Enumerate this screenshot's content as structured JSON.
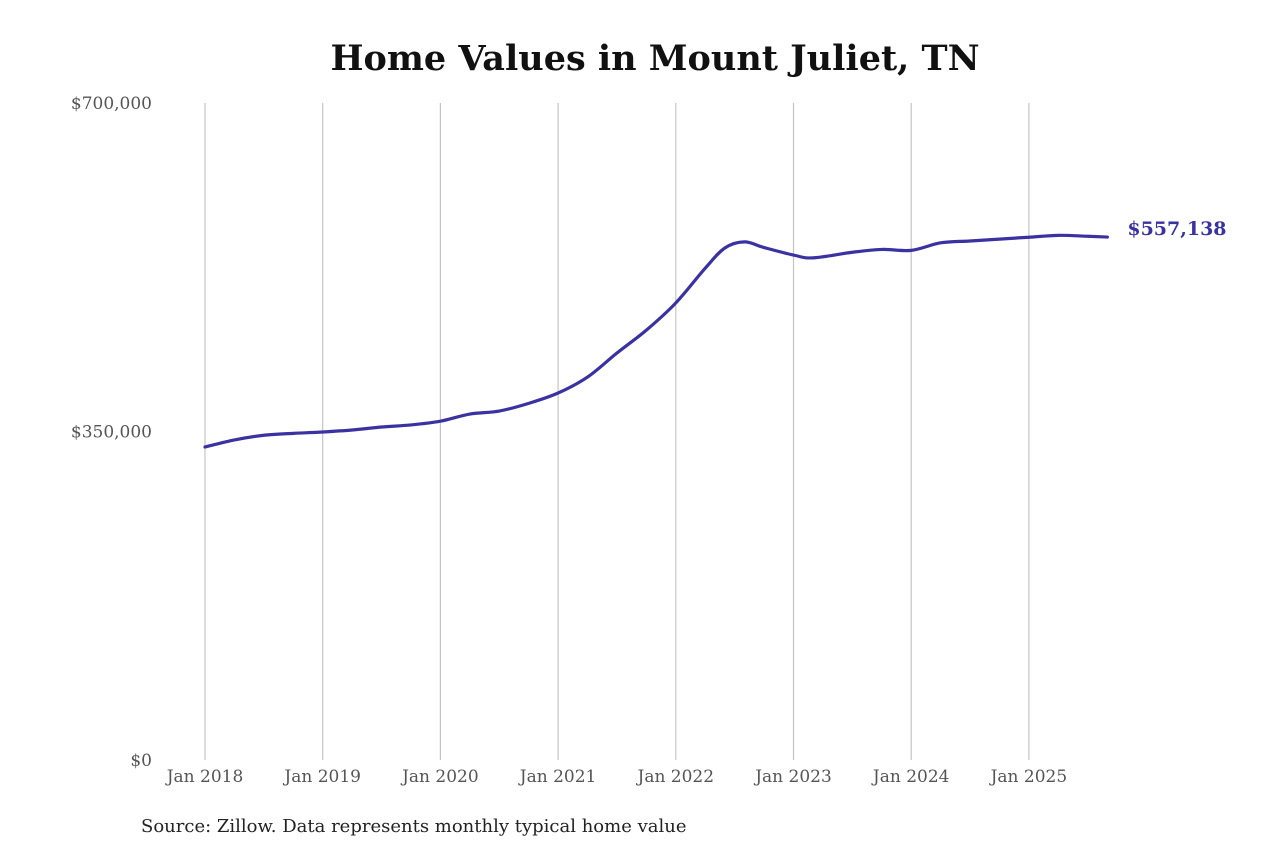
{
  "chart_data": {
    "type": "line",
    "title": "Home Values in Mount Juliet, TN",
    "source": "Source: Zillow. Data represents monthly typical home value",
    "xlabel": "",
    "ylabel": "",
    "ylim": [
      0,
      700000
    ],
    "y_ticks": [
      0,
      350000,
      700000
    ],
    "y_tick_labels": [
      "$0",
      "$350,000",
      "$700,000"
    ],
    "x_ticks": [
      "2018-01",
      "2019-01",
      "2020-01",
      "2021-01",
      "2022-01",
      "2023-01",
      "2024-01",
      "2025-01"
    ],
    "x_tick_labels": [
      "Jan 2018",
      "Jan 2019",
      "Jan 2020",
      "Jan 2021",
      "Jan 2022",
      "Jan 2023",
      "Jan 2024",
      "Jan 2025"
    ],
    "grid": "vertical",
    "line_color": "#3a32a0",
    "end_label": "$557,138",
    "series": [
      {
        "x": [
          "2018-01",
          "2018-04",
          "2018-07",
          "2018-10",
          "2019-01",
          "2019-04",
          "2019-07",
          "2019-10",
          "2020-01",
          "2020-04",
          "2020-07",
          "2020-10",
          "2021-01",
          "2021-04",
          "2021-07",
          "2021-10",
          "2022-01",
          "2022-04",
          "2022-06",
          "2022-08",
          "2022-10",
          "2023-01",
          "2023-03",
          "2023-07",
          "2023-10",
          "2024-01",
          "2024-04",
          "2024-07",
          "2024-10",
          "2025-01",
          "2025-04",
          "2025-07",
          "2025-09"
        ],
        "values": [
          333500,
          341000,
          346000,
          348000,
          349500,
          351600,
          354800,
          357000,
          361000,
          368600,
          371800,
          380000,
          391000,
          408000,
          433600,
          458000,
          487000,
          524000,
          545500,
          552000,
          546000,
          538000,
          535000,
          541000,
          544000,
          543000,
          551000,
          553000,
          555000,
          557000,
          559000,
          558000,
          557138
        ]
      }
    ]
  }
}
